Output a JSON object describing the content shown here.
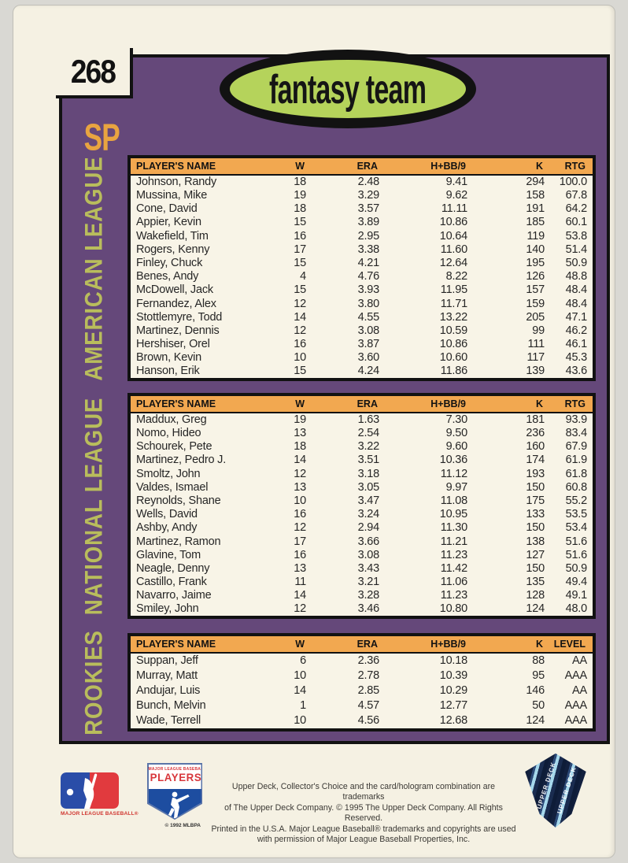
{
  "card": {
    "number": "268",
    "logo_text": "fantasy team",
    "position_label": "SP"
  },
  "colors": {
    "panel_purple": "#65487a",
    "header_orange": "#f2a850",
    "logo_green": "#b5d35b",
    "section_label_olive": "#b9bd5c",
    "sp_orange": "#e8a440",
    "card_cream": "#f5f1e3"
  },
  "tables": [
    {
      "key": "american",
      "section_label": "AMERICAN LEAGUE",
      "headers": [
        "PLAYER'S NAME",
        "W",
        "ERA",
        "H+BB/9",
        "K",
        "RTG"
      ],
      "rows": [
        [
          "Johnson, Randy",
          "18",
          "2.48",
          "9.41",
          "294",
          "100.0"
        ],
        [
          "Mussina, Mike",
          "19",
          "3.29",
          "9.62",
          "158",
          "67.8"
        ],
        [
          "Cone, David",
          "18",
          "3.57",
          "11.11",
          "191",
          "64.2"
        ],
        [
          "Appier, Kevin",
          "15",
          "3.89",
          "10.86",
          "185",
          "60.1"
        ],
        [
          "Wakefield, Tim",
          "16",
          "2.95",
          "10.64",
          "119",
          "53.8"
        ],
        [
          "Rogers, Kenny",
          "17",
          "3.38",
          "11.60",
          "140",
          "51.4"
        ],
        [
          "Finley, Chuck",
          "15",
          "4.21",
          "12.64",
          "195",
          "50.9"
        ],
        [
          "Benes, Andy",
          "4",
          "4.76",
          "8.22",
          "126",
          "48.8"
        ],
        [
          "McDowell, Jack",
          "15",
          "3.93",
          "11.95",
          "157",
          "48.4"
        ],
        [
          "Fernandez, Alex",
          "12",
          "3.80",
          "11.71",
          "159",
          "48.4"
        ],
        [
          "Stottlemyre, Todd",
          "14",
          "4.55",
          "13.22",
          "205",
          "47.1"
        ],
        [
          "Martinez, Dennis",
          "12",
          "3.08",
          "10.59",
          "99",
          "46.2"
        ],
        [
          "Hershiser, Orel",
          "16",
          "3.87",
          "10.86",
          "111",
          "46.1"
        ],
        [
          "Brown, Kevin",
          "10",
          "3.60",
          "10.60",
          "117",
          "45.3"
        ],
        [
          "Hanson, Erik",
          "15",
          "4.24",
          "11.86",
          "139",
          "43.6"
        ]
      ]
    },
    {
      "key": "national",
      "section_label": "NATIONAL LEAGUE",
      "headers": [
        "PLAYER'S NAME",
        "W",
        "ERA",
        "H+BB/9",
        "K",
        "RTG"
      ],
      "rows": [
        [
          "Maddux, Greg",
          "19",
          "1.63",
          "7.30",
          "181",
          "93.9"
        ],
        [
          "Nomo, Hideo",
          "13",
          "2.54",
          "9.50",
          "236",
          "83.4"
        ],
        [
          "Schourek, Pete",
          "18",
          "3.22",
          "9.60",
          "160",
          "67.9"
        ],
        [
          "Martinez, Pedro J.",
          "14",
          "3.51",
          "10.36",
          "174",
          "61.9"
        ],
        [
          "Smoltz, John",
          "12",
          "3.18",
          "11.12",
          "193",
          "61.8"
        ],
        [
          "Valdes, Ismael",
          "13",
          "3.05",
          "9.97",
          "150",
          "60.8"
        ],
        [
          "Reynolds, Shane",
          "10",
          "3.47",
          "11.08",
          "175",
          "55.2"
        ],
        [
          "Wells, David",
          "16",
          "3.24",
          "10.95",
          "133",
          "53.5"
        ],
        [
          "Ashby, Andy",
          "12",
          "2.94",
          "11.30",
          "150",
          "53.4"
        ],
        [
          "Martinez, Ramon",
          "17",
          "3.66",
          "11.21",
          "138",
          "51.6"
        ],
        [
          "Glavine, Tom",
          "16",
          "3.08",
          "11.23",
          "127",
          "51.6"
        ],
        [
          "Neagle, Denny",
          "13",
          "3.43",
          "11.42",
          "150",
          "50.9"
        ],
        [
          "Castillo, Frank",
          "11",
          "3.21",
          "11.06",
          "135",
          "49.4"
        ],
        [
          "Navarro, Jaime",
          "14",
          "3.28",
          "11.23",
          "128",
          "49.1"
        ],
        [
          "Smiley, John",
          "12",
          "3.46",
          "10.80",
          "124",
          "48.0"
        ]
      ]
    },
    {
      "key": "rookies",
      "section_label": "ROOKIES",
      "headers": [
        "PLAYER'S NAME",
        "W",
        "ERA",
        "H+BB/9",
        "K",
        "LEVEL"
      ],
      "rows": [
        [
          "Suppan, Jeff",
          "6",
          "2.36",
          "10.18",
          "88",
          "AA"
        ],
        [
          "Murray, Matt",
          "10",
          "2.78",
          "10.39",
          "95",
          "AAA"
        ],
        [
          "Andujar, Luis",
          "14",
          "2.85",
          "10.29",
          "146",
          "AA"
        ],
        [
          "Bunch, Melvin",
          "1",
          "4.57",
          "12.77",
          "50",
          "AAA"
        ],
        [
          "Wade, Terrell",
          "10",
          "4.56",
          "12.68",
          "124",
          "AAA"
        ]
      ]
    }
  ],
  "footer": {
    "mlb_caption": "MAJOR LEAGUE BASEBALL®",
    "mlbpa_top": "MAJOR LEAGUE BASEBALL",
    "mlbpa_players": "PLAYERS",
    "mlbpa_caption": "© 1992 MLBPA",
    "legal_lines": [
      "Upper Deck, Collector's Choice and the card/hologram combination are trademarks",
      "of The Upper Deck Company. © 1995 The Upper Deck Company. All Rights Reserved.",
      "Printed in the U.S.A. Major League Baseball® trademarks and copyrights are used",
      "with permission of Major League Baseball Properties, Inc."
    ],
    "hologram_text": "UPPER DECK"
  }
}
